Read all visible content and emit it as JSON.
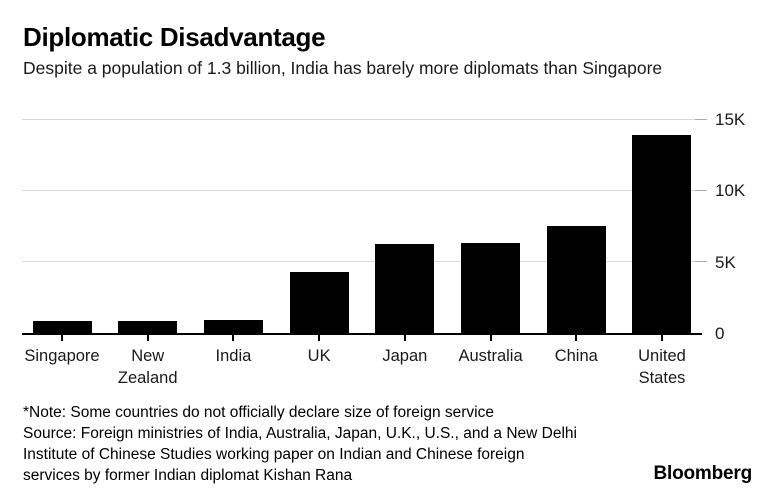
{
  "header": {
    "title": "Diplomatic Disadvantage",
    "subtitle": "Despite a population of 1.3 billion, India has barely more diplomats than Singapore"
  },
  "chart_data": {
    "type": "bar",
    "title": "Diplomatic Disadvantage",
    "subtitle": "Despite a population of 1.3 billion, India has barely more diplomats than Singapore",
    "categories": [
      "Singapore",
      "New Zealand",
      "India",
      "UK",
      "Japan",
      "Australia",
      "China",
      "United States"
    ],
    "values": [
      850,
      860,
      900,
      4300,
      6250,
      6300,
      7500,
      13900
    ],
    "xlabel": "",
    "ylabel": "",
    "ylim": [
      0,
      15000
    ],
    "yticks": [
      {
        "value": 0,
        "label": "0"
      },
      {
        "value": 5000,
        "label": "5K"
      },
      {
        "value": 10000,
        "label": "10K"
      },
      {
        "value": 15000,
        "label": "15K"
      }
    ],
    "grid": true,
    "legend": false,
    "bar_color": "#000000",
    "gridline_color": "#d8d8d8",
    "axis_color": "#000000"
  },
  "footer": {
    "lines": [
      "*Note: Some countries do not officially declare size of foreign service",
      "Source: Foreign ministries of India, Australia, Japan, U.K., U.S., and a New Delhi",
      "Institute of Chinese Studies working paper on Indian and Chinese foreign",
      "services by former Indian diplomat Kishan Rana"
    ],
    "brand": "Bloomberg"
  }
}
